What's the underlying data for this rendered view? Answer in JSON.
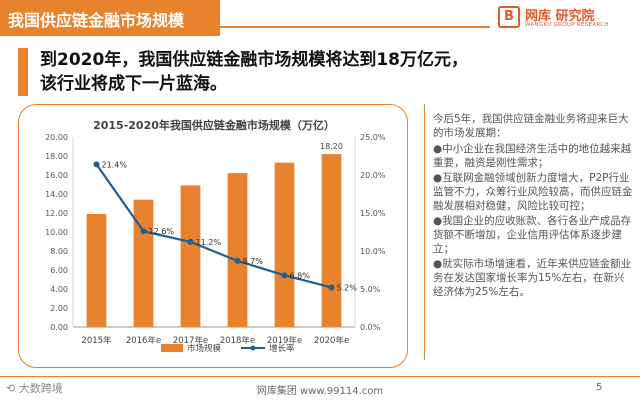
{
  "header": {
    "title": "我国供应链金融市场规模",
    "logo_mark": "B",
    "logo_text": "网库 研究院",
    "logo_sub": "WANGKU GROUP RESEARCH"
  },
  "headline": {
    "line1": "到2020年，我国供应链金融市场规模将达到18万亿元，",
    "line2": "该行业将成下一片蓝海。"
  },
  "chart_data": {
    "type": "bar",
    "title": "2015-2020年我国供应链金融市场规模（万亿）",
    "categories": [
      "2015年",
      "2016年e",
      "2017年e",
      "2018年e",
      "2019年e",
      "2020年e"
    ],
    "series": [
      {
        "name": "市场规模",
        "type": "bar",
        "axis": "left",
        "color": "#e8822c",
        "values": [
          11.9,
          13.4,
          14.9,
          16.2,
          17.3,
          18.2
        ],
        "data_labels": [
          "",
          "",
          "",
          "",
          "",
          "18.20"
        ]
      },
      {
        "name": "增长率",
        "type": "line",
        "axis": "right",
        "color": "#1f5e96",
        "values": [
          21.4,
          12.6,
          11.2,
          8.7,
          6.8,
          5.2
        ],
        "data_labels": [
          "21.4%",
          "12.6%",
          "11.2%",
          "8.7%",
          "6.8%",
          "5.2%"
        ]
      }
    ],
    "y_left": {
      "min": 0,
      "max": 20,
      "step": 2,
      "tick_labels": [
        "0.00",
        "2.00",
        "4.00",
        "6.00",
        "8.00",
        "10.00",
        "12.00",
        "14.00",
        "16.00",
        "18.00",
        "20.00"
      ]
    },
    "y_right": {
      "min": 0,
      "max": 25,
      "step": 5,
      "tick_labels": [
        "0.0%",
        "5.0%",
        "10.0%",
        "15.0%",
        "20.0%",
        "25.0%"
      ]
    },
    "legend_position": "bottom",
    "grid": false
  },
  "sidebar": {
    "intro": "今后5年，我国供应链金融业务将迎来巨大的市场发展期：",
    "points": [
      "●中小企业在我国经济生活中的地位越来越重要，融资是刚性需求；",
      "●互联网金融领域创新力度增大，P2P行业监管不力，众筹行业风险较高，而供应链金融发展相对稳健，风险比较可控；",
      "●我国企业的应收账款、各行各业产成品存货额不断增加，企业信用评估体系逐步建立；",
      "●就实际市场增速看，近年来供应链金额业务在发达国家增长率为15%左右，在新兴经济体为25%左右。"
    ]
  },
  "footer": {
    "left_logo": "大数跨境",
    "center": "网库集团 www.99114.com",
    "page": "5"
  }
}
